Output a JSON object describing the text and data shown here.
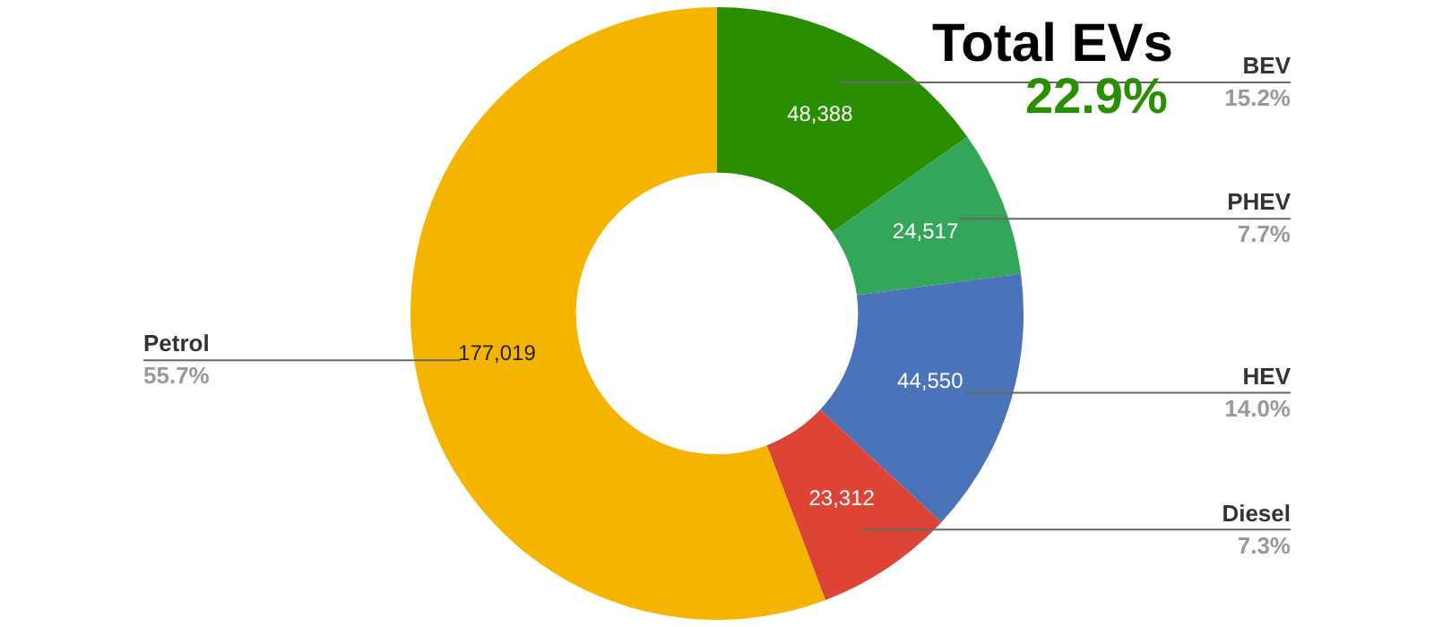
{
  "chart_data": {
    "type": "donut",
    "categories": [
      "BEV",
      "PHEV",
      "HEV",
      "Diesel",
      "Petrol"
    ],
    "values": [
      15.2,
      7.7,
      14.0,
      7.3,
      55.7
    ],
    "colors": [
      "#2a8f00",
      "#33a65a",
      "#4a73b9",
      "#dd4436",
      "#f4b400"
    ],
    "value_labels": [
      "15.2%",
      "7.7%",
      "14.0%",
      "7.3%",
      "55.7%"
    ],
    "annotations": [
      "Total EVs",
      "22.9%",
      {
        "text": "48,388",
        "x": "BEV"
      },
      {
        "text": "24,517",
        "x": "PHEV"
      },
      {
        "text": "44,550",
        "x": "HEV"
      },
      {
        "text": "23,312",
        "x": "Diesel"
      },
      {
        "text": "177,019",
        "x": "Petrol"
      }
    ],
    "legend": false
  }
}
